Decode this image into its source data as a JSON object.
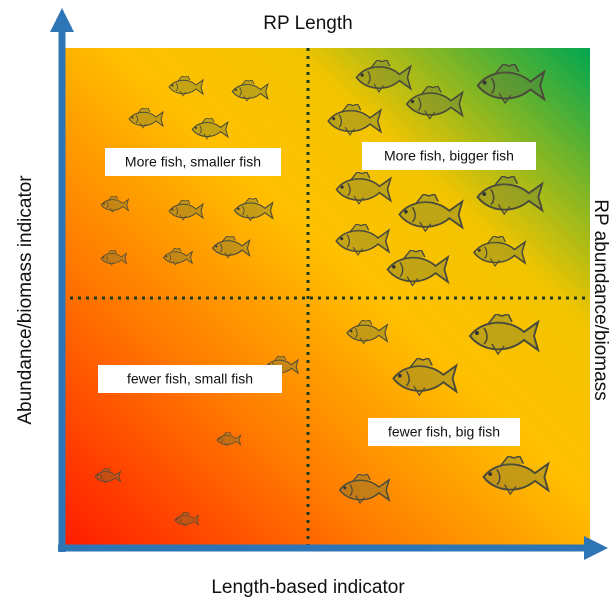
{
  "title_top": "RP Length",
  "y_axis_label": "Abundance/biomass indicator",
  "x_axis_label": "Length-based indicator",
  "right_label": "RP abundance/biomass",
  "quadrants": [
    {
      "label": "More fish, smaller fish"
    },
    {
      "label": "More fish, bigger fish"
    },
    {
      "label": "fewer fish, small fish"
    },
    {
      "label": "fewer fish, big fish"
    }
  ]
}
